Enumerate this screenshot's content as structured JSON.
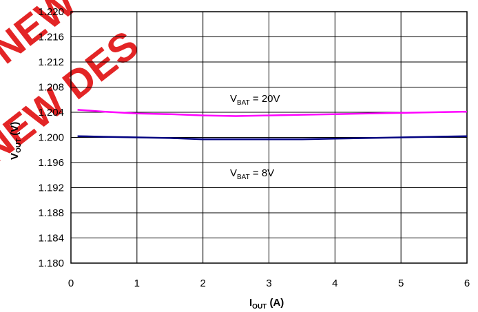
{
  "chart_data": {
    "type": "line",
    "xlabel": {
      "main": "I",
      "sub": "OUT",
      "unit": " (A)"
    },
    "ylabel": {
      "main": "V",
      "sub": "OUT",
      "unit": " (V)"
    },
    "xlim": [
      0,
      6
    ],
    "ylim": [
      1.18,
      1.22
    ],
    "x_ticks": [
      "0",
      "1",
      "2",
      "3",
      "4",
      "5",
      "6"
    ],
    "y_ticks": [
      "1.180",
      "1.184",
      "1.188",
      "1.192",
      "1.196",
      "1.200",
      "1.204",
      "1.208",
      "1.212",
      "1.216",
      "1.220"
    ],
    "grid": true,
    "series": [
      {
        "label": {
          "main": "V",
          "sub": "BAT",
          "rest": " = 20V"
        },
        "color": "#ff00ff",
        "x": [
          0.1,
          0.5,
          1.0,
          1.5,
          2.0,
          2.5,
          3.0,
          3.5,
          4.0,
          4.5,
          5.0,
          5.5,
          6.0
        ],
        "y": [
          1.2044,
          1.2041,
          1.2038,
          1.2037,
          1.2035,
          1.2034,
          1.2035,
          1.2036,
          1.2037,
          1.2038,
          1.2039,
          1.204,
          1.2041
        ]
      },
      {
        "label": {
          "main": "V",
          "sub": "BAT",
          "rest": " = 8V"
        },
        "color": "#000080",
        "x": [
          0.1,
          0.5,
          1.0,
          1.5,
          2.0,
          2.5,
          3.0,
          3.5,
          4.0,
          4.5,
          5.0,
          5.5,
          6.0
        ],
        "y": [
          1.2002,
          1.2001,
          1.2,
          1.1999,
          1.1997,
          1.1997,
          1.1997,
          1.1997,
          1.1998,
          1.1999,
          1.2,
          1.2001,
          1.2002
        ]
      }
    ]
  },
  "watermark": {
    "line1": "NEW DES",
    "line2": "NEW DES",
    "color": "#e32526"
  }
}
